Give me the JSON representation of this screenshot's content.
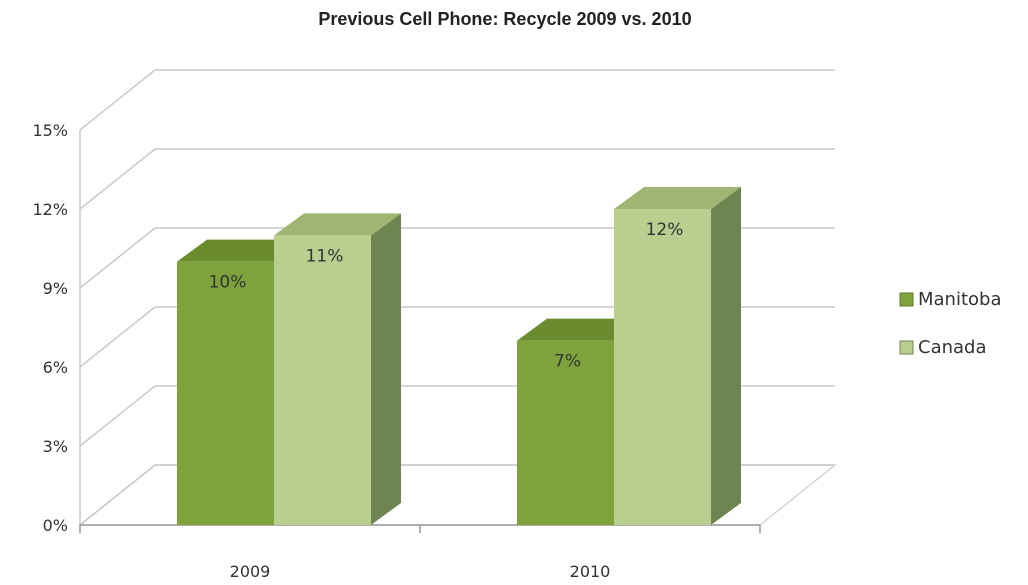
{
  "chart_data": {
    "type": "bar",
    "title": "Previous Cell Phone: Recycle 2009 vs. 2010",
    "categories": [
      "2009",
      "2010"
    ],
    "series": [
      {
        "name": "Manitoba",
        "values": [
          10,
          7
        ],
        "labels": [
          "10%",
          "7%"
        ]
      },
      {
        "name": "Canada",
        "values": [
          11,
          12
        ],
        "labels": [
          "11%",
          "12%"
        ]
      }
    ],
    "ylim": [
      0,
      15
    ],
    "yticks": [
      0,
      3,
      6,
      9,
      12,
      15
    ],
    "ytick_labels": [
      "0%",
      "3%",
      "6%",
      "9%",
      "12%",
      "15%"
    ],
    "grid": true,
    "legend": "right",
    "style": "3d-column"
  },
  "colors": {
    "manitoba_front": "#7ea33c",
    "manitoba_top": "#6a8c2f",
    "manitoba_side": "#5e7e27",
    "canada_front": "#b8cf8f",
    "canada_top": "#9fb672",
    "canada_side": "#6f8551",
    "grid": "#c9c9c9",
    "floor": "#d6d6d6"
  }
}
